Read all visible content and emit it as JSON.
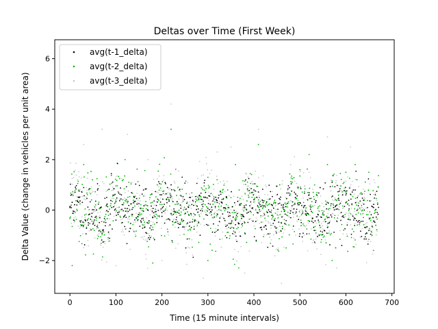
{
  "chart_data": {
    "type": "scatter",
    "title": "Deltas over Time (First Week)",
    "xlabel": "Time (15 minute intervals)",
    "ylabel": "Delta Value (change in vehicles per unit area)",
    "xlim": [
      -33,
      705
    ],
    "ylim": [
      -3.3,
      6.75
    ],
    "xticks": [
      0,
      100,
      200,
      300,
      400,
      500,
      600,
      700
    ],
    "yticks": [
      -2,
      0,
      2,
      4,
      6
    ],
    "grid": false,
    "legend_position": "upper-left",
    "n_points": 672,
    "series": [
      {
        "name": "avg(t-1_delta)",
        "color": "#000000",
        "amplitude": 1.0,
        "seed": 11,
        "values_sample": [
          [
            0,
            0.1
          ],
          [
            20,
            0.5
          ],
          [
            40,
            -0.5
          ],
          [
            60,
            0.8
          ],
          [
            80,
            0.5
          ],
          [
            100,
            -0.4
          ],
          [
            120,
            -0.2
          ],
          [
            140,
            0.5
          ],
          [
            160,
            0.8
          ],
          [
            180,
            -0.3
          ],
          [
            200,
            -0.1
          ],
          [
            220,
            1.0
          ],
          [
            240,
            0.2
          ],
          [
            260,
            0.5
          ],
          [
            280,
            -0.5
          ],
          [
            300,
            -0.6
          ],
          [
            320,
            0.3
          ],
          [
            340,
            0.5
          ],
          [
            360,
            -0.4
          ],
          [
            380,
            0.1
          ],
          [
            400,
            0.8
          ],
          [
            420,
            0.3
          ],
          [
            440,
            0.2
          ],
          [
            460,
            0.2
          ],
          [
            480,
            -0.3
          ],
          [
            500,
            0.3
          ],
          [
            520,
            0.6
          ],
          [
            540,
            -0.4
          ],
          [
            560,
            -0.3
          ],
          [
            580,
            0.2
          ],
          [
            600,
            0.6
          ],
          [
            620,
            0.8
          ],
          [
            640,
            0.0
          ],
          [
            660,
            0.1
          ]
        ]
      },
      {
        "name": "avg(t-2_delta)",
        "color": "#00b300",
        "amplitude": 1.2,
        "seed": 23,
        "values_sample": [
          [
            5,
            -2.2
          ],
          [
            30,
            1.8
          ],
          [
            60,
            -0.6
          ],
          [
            100,
            0.4
          ],
          [
            120,
            2.0
          ],
          [
            160,
            -0.4
          ],
          [
            180,
            -2.1
          ],
          [
            220,
            3.2
          ],
          [
            240,
            -0.5
          ],
          [
            280,
            0.4
          ],
          [
            300,
            -2.0
          ],
          [
            320,
            1.2
          ],
          [
            360,
            1.8
          ],
          [
            380,
            -0.9
          ],
          [
            410,
            2.6
          ],
          [
            440,
            -0.2
          ],
          [
            470,
            -1.5
          ],
          [
            500,
            1.6
          ],
          [
            520,
            2.2
          ],
          [
            560,
            1.8
          ],
          [
            570,
            -2.0
          ],
          [
            600,
            1.5
          ],
          [
            620,
            1.8
          ],
          [
            650,
            1.5
          ],
          [
            660,
            -1.6
          ]
        ]
      },
      {
        "name": "avg(t-3_delta)",
        "color": "#c8c8c8",
        "amplitude": 1.3,
        "seed": 37,
        "values_sample": [
          [
            30,
            2.6
          ],
          [
            70,
            3.2
          ],
          [
            100,
            -2.2
          ],
          [
            125,
            3.0
          ],
          [
            170,
            2.0
          ],
          [
            200,
            -2.0
          ],
          [
            220,
            4.2
          ],
          [
            260,
            -1.5
          ],
          [
            290,
            -2.7
          ],
          [
            320,
            2.3
          ],
          [
            350,
            2.5
          ],
          [
            380,
            -2.5
          ],
          [
            410,
            3.2
          ],
          [
            460,
            -2.9
          ],
          [
            480,
            1.8
          ],
          [
            520,
            1.5
          ],
          [
            560,
            2.9
          ],
          [
            580,
            -2.3
          ],
          [
            610,
            2.5
          ],
          [
            640,
            0.5
          ]
        ]
      }
    ]
  }
}
